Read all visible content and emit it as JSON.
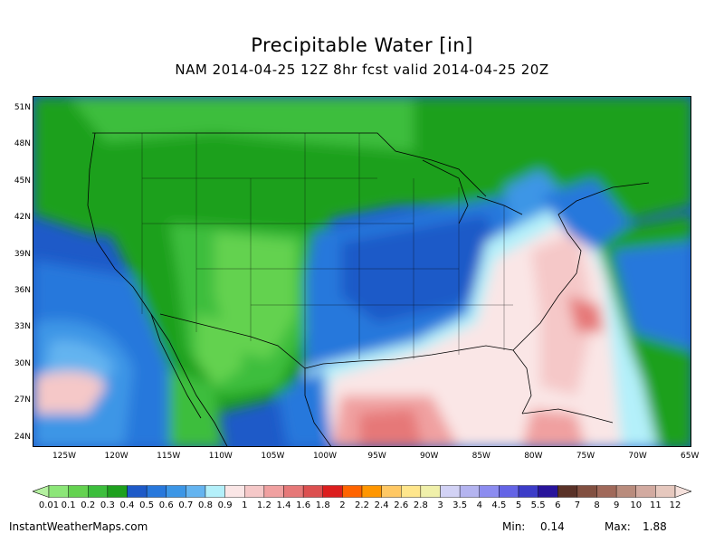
{
  "title": "Precipitable Water [in]",
  "subtitle": "NAM 2014-04-25 12Z 8hr fcst valid 2014-04-25 20Z",
  "lat_labels": [
    "51N",
    "48N",
    "45N",
    "42N",
    "39N",
    "36N",
    "33N",
    "30N",
    "27N",
    "24N"
  ],
  "lon_labels": [
    "125W",
    "120W",
    "115W",
    "110W",
    "105W",
    "100W",
    "95W",
    "90W",
    "85W",
    "80W",
    "75W",
    "70W",
    "65W"
  ],
  "colorbar": {
    "labels": [
      "0.01",
      "0.1",
      "0.2",
      "0.3",
      "0.4",
      "0.5",
      "0.6",
      "0.7",
      "0.8",
      "0.9",
      "1",
      "1.2",
      "1.4",
      "1.6",
      "1.8",
      "2",
      "2.2",
      "2.4",
      "2.6",
      "2.8",
      "3",
      "3.5",
      "4",
      "4.5",
      "5",
      "5.5",
      "6",
      "7",
      "8",
      "9",
      "10",
      "11",
      "12"
    ],
    "colors": [
      "#b4f0a0",
      "#8ce678",
      "#64d250",
      "#3cbe3c",
      "#1ea01e",
      "#1e5ac8",
      "#2878dc",
      "#3c96e6",
      "#64b4f0",
      "#b4f0fa",
      "#fae6e6",
      "#f5c8c8",
      "#f0a0a0",
      "#e67878",
      "#dc5050",
      "#dc1e1e",
      "#ff6400",
      "#ff9600",
      "#ffc864",
      "#ffe68c",
      "#f0f0aa",
      "#d2d2f5",
      "#b4b4f0",
      "#8c8cf0",
      "#6464e6",
      "#3c3cc8",
      "#28149b",
      "#5a3228",
      "#825041",
      "#a0695a",
      "#b98c7d",
      "#d2aaa0",
      "#e6c8be",
      "#f5e1dc"
    ]
  },
  "footer": {
    "site": "InstantWeatherMaps.com",
    "min_label": "Min:",
    "min_value": "0.14",
    "max_label": "Max:",
    "max_value": "1.88"
  }
}
